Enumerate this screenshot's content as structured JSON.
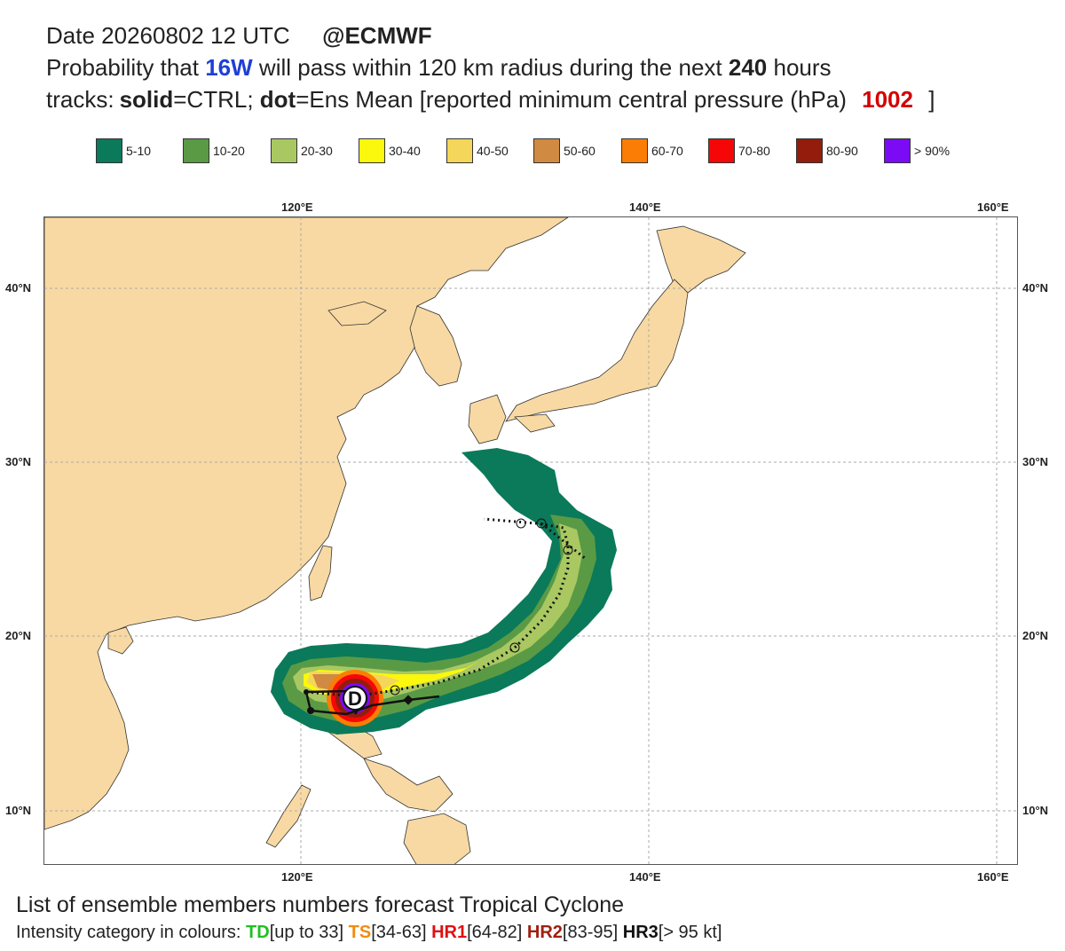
{
  "header": {
    "line1_date": "Date 20260802 12 UTC",
    "line1_org": "@ECMWF",
    "line2_prefix": "Probability that",
    "line2_storm": "16W",
    "line2_mid": "will pass within 120 km radius during the next",
    "line2_hours": "240",
    "line2_suffix": "hours",
    "line3_prefix": "tracks:",
    "line3_solid": "solid",
    "line3_ctrl": "=CTRL;",
    "line3_dot": "dot",
    "line3_mean": "=Ens Mean [reported minimum central pressure (hPa)",
    "line3_pressure": "1002",
    "line3_end": "]",
    "storm_color": "#1f3fd6",
    "pressure_color": "#d40000"
  },
  "legend": [
    {
      "label": "5-10",
      "color": "#0a7a5a"
    },
    {
      "label": "10-20",
      "color": "#5a9a45"
    },
    {
      "label": "20-30",
      "color": "#a9c862"
    },
    {
      "label": "30-40",
      "color": "#fbf70d"
    },
    {
      "label": "40-50",
      "color": "#f3d65a"
    },
    {
      "label": "50-60",
      "color": "#d18a41"
    },
    {
      "label": "60-70",
      "color": "#fb7d05"
    },
    {
      "label": "70-80",
      "color": "#f50707"
    },
    {
      "label": "80-90",
      "color": "#941c0c"
    },
    {
      "label": "> 90%",
      "color": "#7b0bf5"
    }
  ],
  "axes": {
    "lon_labels": [
      "120°E",
      "140°E",
      "160°E"
    ],
    "lat_labels": [
      "40°N",
      "30°N",
      "20°N",
      "10°N"
    ]
  },
  "map": {
    "storm_marker": "D",
    "land_color": "#f8d9a3",
    "ocean_color": "#ffffff"
  },
  "footer": {
    "title": "List of ensemble members numbers forecast Tropical Cyclone",
    "intensity_prefix": "Intensity category in colours:",
    "td_label": "TD",
    "td_range": "[up to 33]",
    "ts_label": "TS",
    "ts_range": "[34-63]",
    "hr1_label": "HR1",
    "hr1_range": "[64-82]",
    "hr2_label": "HR2",
    "hr2_range": "[83-95]",
    "hr3_label": "HR3",
    "hr3_range": "[> 95 kt]",
    "td_color": "#20c020",
    "ts_color": "#f08c10",
    "hr1_color": "#e01010",
    "hr2_color": "#a01f10",
    "hr3_color": "#111111"
  }
}
